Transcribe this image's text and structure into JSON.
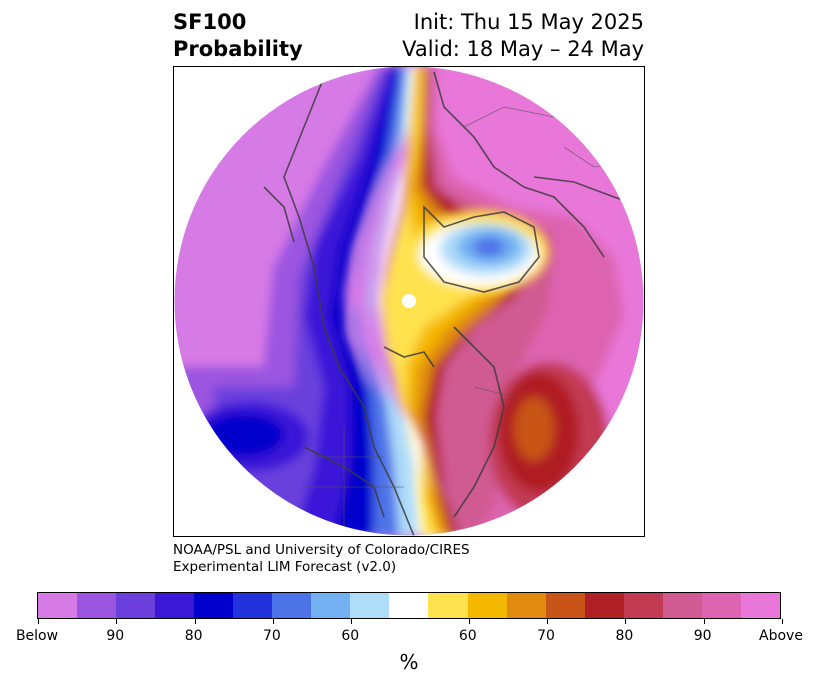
{
  "title": {
    "left_line1": "SF100",
    "left_line2": "Probability",
    "right_line1": "Init: Thu 15 May 2025",
    "right_line2": "Valid: 18 May – 24 May"
  },
  "credit": {
    "line1": "NOAA/PSL and University of Colorado/CIRES",
    "line2": "Experimental LIM Forecast (v2.0)"
  },
  "colorbar": {
    "unit": "%",
    "colors": [
      "#d67ae6",
      "#9b55e0",
      "#6a3fdc",
      "#3b18d8",
      "#0000cc",
      "#2233dd",
      "#4d73e8",
      "#72b0f2",
      "#aedcf9",
      "#ffffff",
      "#ffe24d",
      "#f5b800",
      "#e08a10",
      "#c85418",
      "#b01f24",
      "#c23a52",
      "#d05a92",
      "#dd64b0",
      "#e877d9"
    ],
    "labels": [
      "Below",
      "90",
      "80",
      "70",
      "60",
      "60",
      "70",
      "80",
      "90",
      "Above"
    ]
  }
}
